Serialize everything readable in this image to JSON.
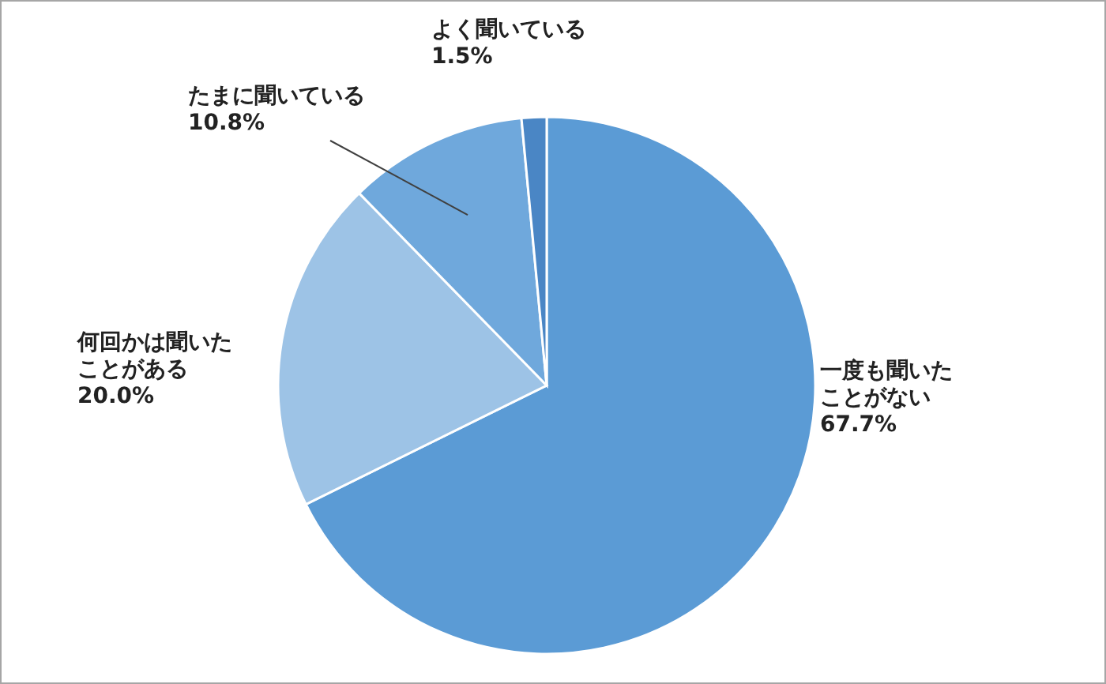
{
  "chart_data": {
    "type": "pie",
    "categories": [
      "一度も聞いたことがない",
      "何回かは聞いたことがある",
      "たまに聞いている",
      "よく聞いている"
    ],
    "values": [
      67.7,
      20.0,
      10.8,
      1.5
    ],
    "value_labels": [
      "67.7%",
      "20.0%",
      "10.8%",
      "1.5%"
    ],
    "colors": [
      "#5b9bd5",
      "#9dc3e6",
      "#6fa8dc",
      "#4a86c5"
    ]
  }
}
